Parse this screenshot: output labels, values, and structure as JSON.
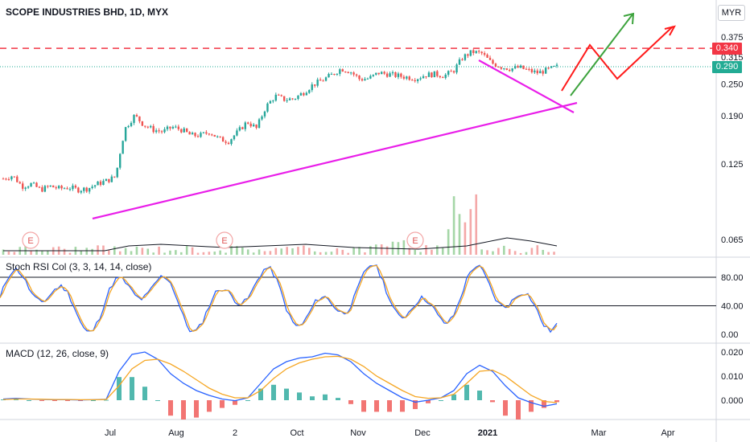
{
  "header": {
    "title": "SCOPE INDUSTRIES BHD, 1D, MYX",
    "currency": "MYR"
  },
  "colors": {
    "up": "#26a69a",
    "down": "#ef5350",
    "trend": "#e91ee9",
    "resistance": "#f23645",
    "price_tag": "#22ab94",
    "k_line": "#2962ff",
    "d_line": "#f5a623",
    "target_red": "#ff1a1a",
    "target_green": "#3da33d"
  },
  "stoch": {
    "label": "Stoch RSI Col (3, 3, 14, 14, close)",
    "ticks": [
      "80.00",
      "40.00",
      "0.00"
    ]
  },
  "macd": {
    "label": "MACD (12, 26, close, 9)",
    "ticks": [
      "0.020",
      "0.010",
      "0.000"
    ]
  },
  "earnings_marker": "E",
  "chart_data": {
    "type": "candlestick",
    "y_axis_scale": "log",
    "price_ticks": [
      "0.375",
      "0.315",
      "0.250",
      "0.190",
      "0.125",
      "0.065"
    ],
    "resistance": "0.340",
    "last_price": "0.290",
    "x_ticks": [
      "Jul",
      "Aug",
      "2",
      "Oct",
      "Nov",
      "Dec",
      "2021",
      "Mar",
      "Apr"
    ],
    "stoch_levels": [
      80,
      40
    ],
    "price_path": [
      0.11,
      0.113,
      0.103,
      0.105,
      0.1,
      0.103,
      0.101,
      0.102,
      0.1,
      0.101,
      0.105,
      0.108,
      0.112,
      0.17,
      0.19,
      0.175,
      0.168,
      0.165,
      0.172,
      0.168,
      0.16,
      0.16,
      0.165,
      0.155,
      0.152,
      0.165,
      0.18,
      0.17,
      0.205,
      0.225,
      0.218,
      0.22,
      0.232,
      0.248,
      0.258,
      0.27,
      0.285,
      0.278,
      0.26,
      0.262,
      0.275,
      0.272,
      0.268,
      0.265,
      0.262,
      0.27,
      0.272,
      0.268,
      0.28,
      0.315,
      0.33,
      0.325,
      0.3,
      0.29,
      0.285,
      0.288,
      0.28,
      0.275,
      0.282,
      0.29
    ],
    "macd_path": [
      0.0005,
      0.0008,
      0.0005,
      0.0003,
      0.0002,
      0.0002,
      0.0001,
      0.0002,
      0.0004,
      0.012,
      0.019,
      0.02,
      0.017,
      0.011,
      0.007,
      0.004,
      0.002,
      0.0005,
      -0.0002,
      0.001,
      0.007,
      0.013,
      0.016,
      0.0175,
      0.018,
      0.0195,
      0.0188,
      0.016,
      0.011,
      0.007,
      0.004,
      0.001,
      -0.0008,
      0.0,
      0.001,
      0.004,
      0.011,
      0.0145,
      0.012,
      0.006,
      0.001,
      -0.001,
      -0.0025,
      -0.0015
    ],
    "signal_path": [
      0.0003,
      0.0005,
      0.0005,
      0.0004,
      0.0003,
      0.0003,
      0.0002,
      0.0002,
      0.0003,
      0.006,
      0.013,
      0.0165,
      0.017,
      0.015,
      0.012,
      0.0085,
      0.005,
      0.0025,
      0.001,
      0.001,
      0.004,
      0.009,
      0.013,
      0.0155,
      0.017,
      0.018,
      0.0182,
      0.017,
      0.014,
      0.01,
      0.007,
      0.004,
      0.0015,
      0.0008,
      0.001,
      0.0025,
      0.007,
      0.012,
      0.0125,
      0.01,
      0.006,
      0.002,
      -0.0005,
      -0.001
    ]
  }
}
